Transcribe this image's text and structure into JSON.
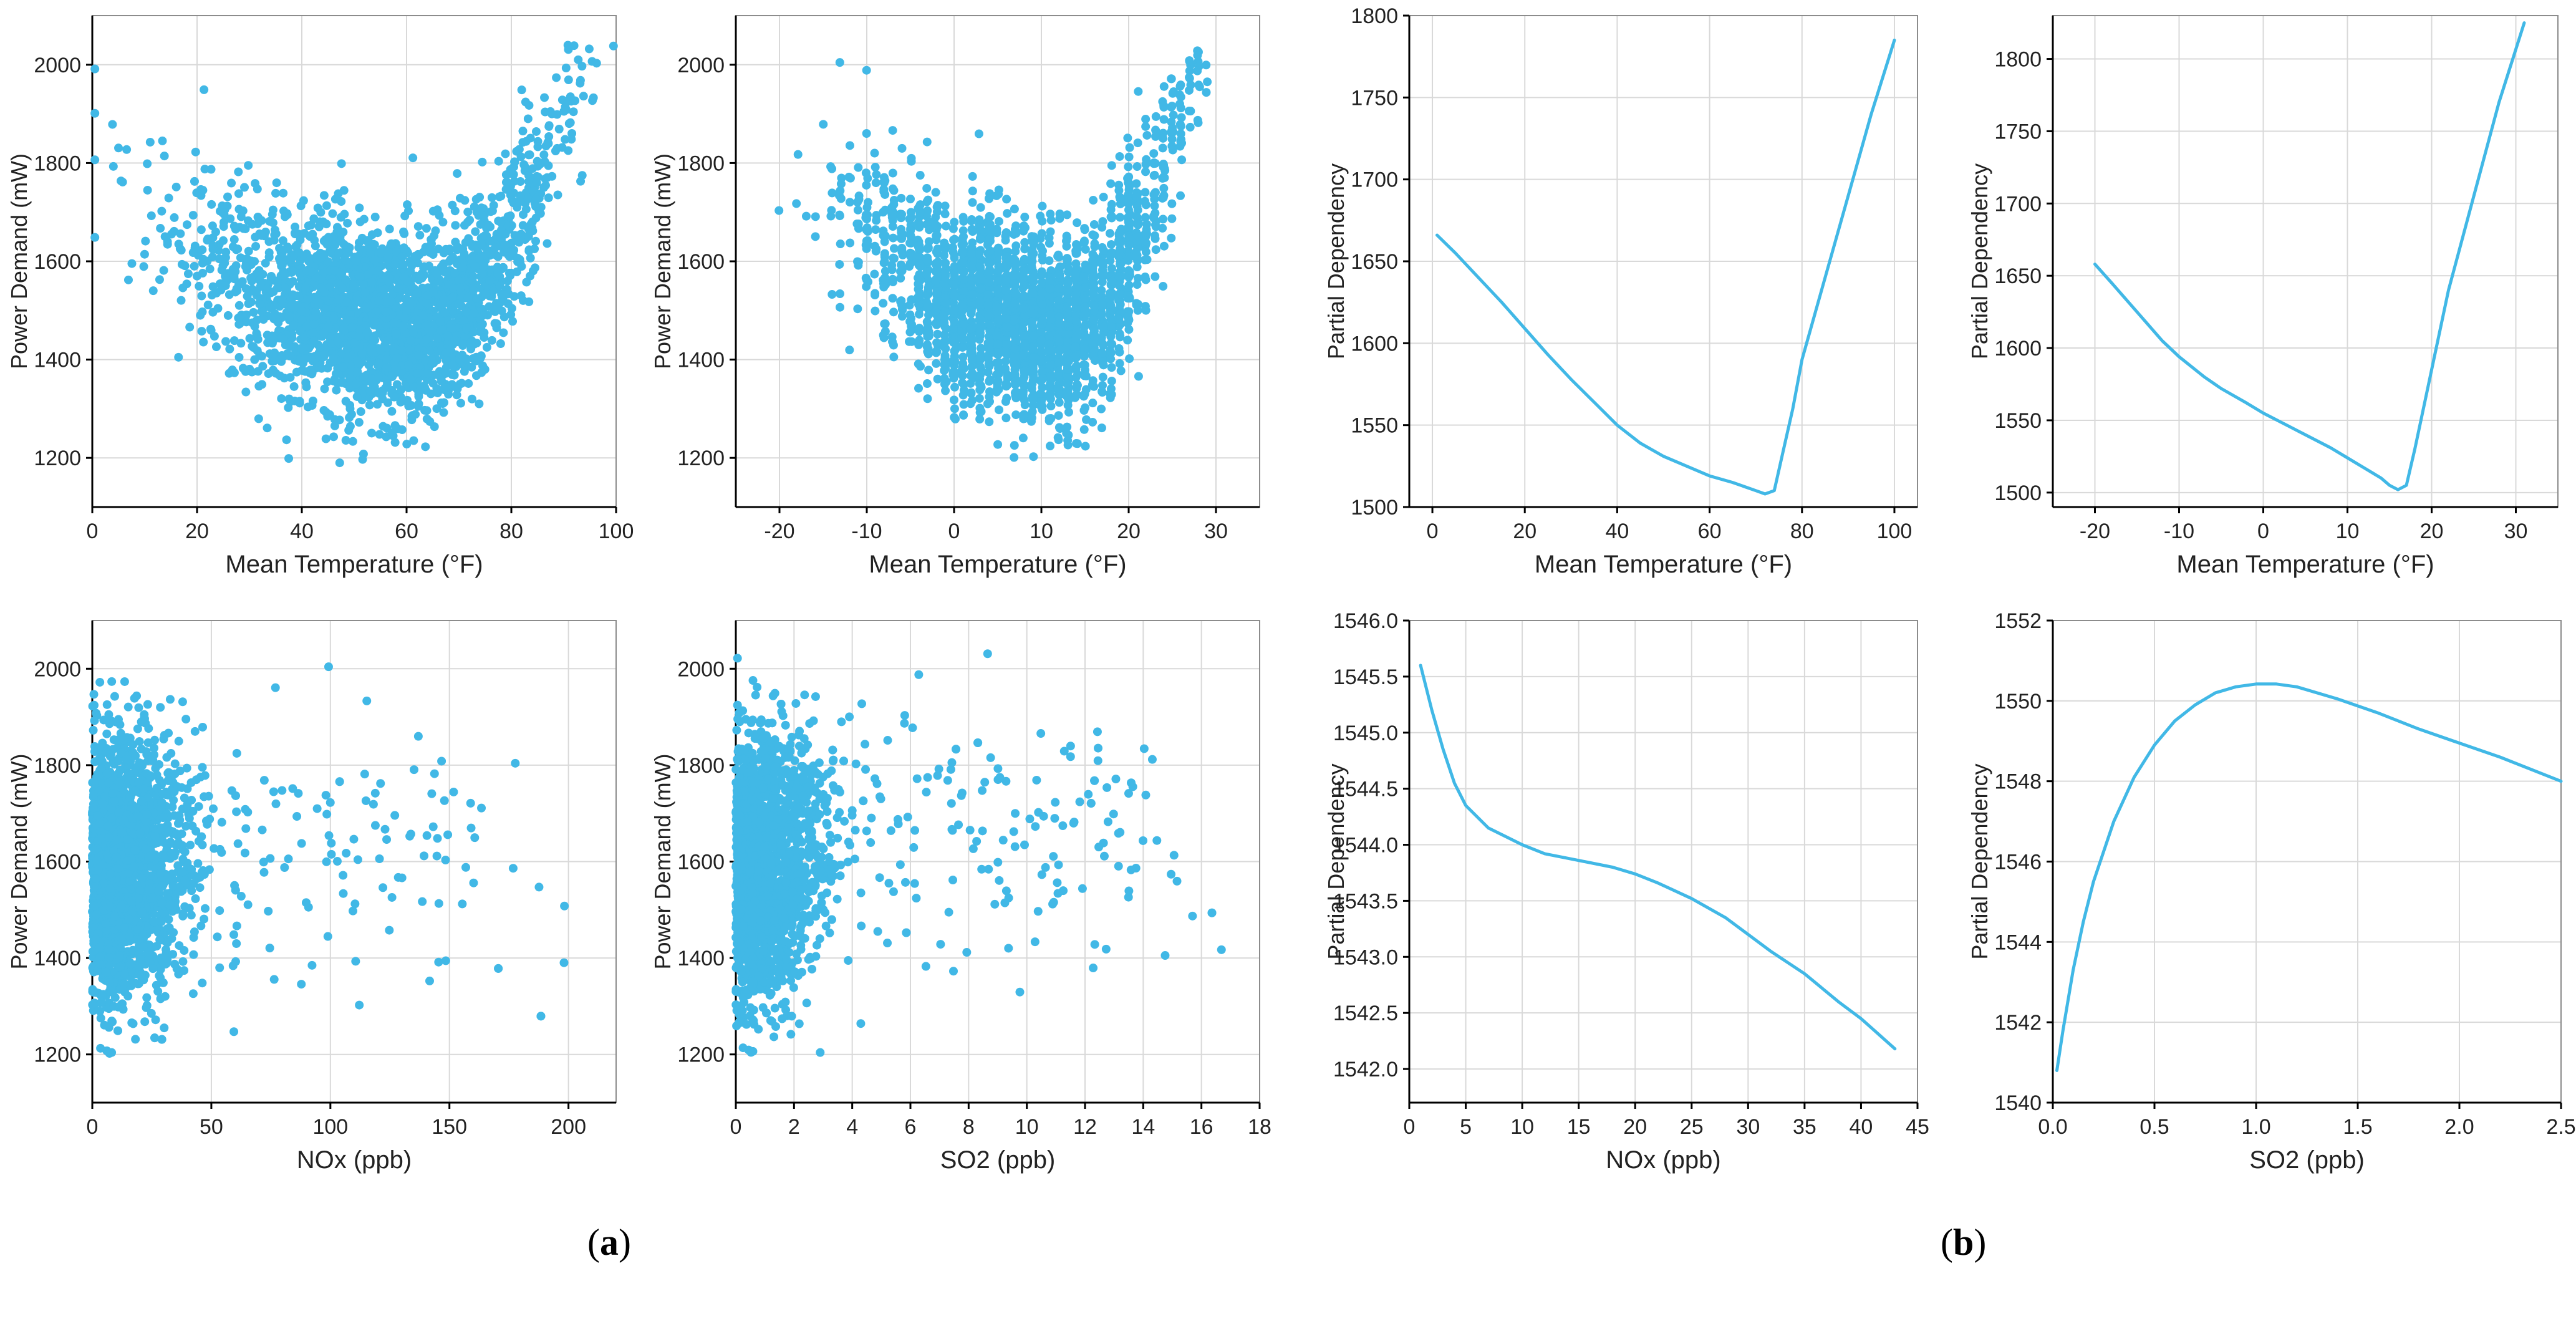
{
  "figure": {
    "panel_a_label": "a",
    "panel_b_label": "b",
    "colors": {
      "series": "#41b8e6",
      "grid": "#d9d9d9",
      "axis": "#000000",
      "text": "#222222"
    }
  },
  "chart_data": [
    {
      "id": "a1",
      "type": "scatter",
      "xlabel": "Mean Temperature (°F)",
      "ylabel": "Power Demand (mW)",
      "xlim": [
        0,
        100
      ],
      "ylim": [
        1100,
        2100
      ],
      "xticks": [
        0,
        20,
        40,
        60,
        80,
        100
      ],
      "yticks": [
        1200,
        1400,
        1600,
        1800,
        2000
      ],
      "grid": true,
      "point_model": {
        "count": 2600,
        "x_range": [
          0,
          100
        ],
        "relationship": "U-shaped, minimum near 62 °F at about 1460 mW, rising to about 1800 mW at 90 °F",
        "y_spread_sd": 90
      }
    },
    {
      "id": "a2",
      "type": "scatter",
      "xlabel": "Mean Temperature (°F)",
      "ylabel": "Power Demand (mW)",
      "xlim": [
        -25,
        35
      ],
      "ylim": [
        1100,
        2100
      ],
      "xticks": [
        -20,
        -10,
        0,
        10,
        20,
        30
      ],
      "yticks": [
        1200,
        1400,
        1600,
        1800,
        2000
      ],
      "grid": true,
      "point_model": {
        "count": 2600,
        "x_range": [
          -20,
          31
        ],
        "relationship": "U-shaped, minimum near 14 at about 1450 mW, rising to about 1800 mW at 28",
        "y_spread_sd": 90
      }
    },
    {
      "id": "b1",
      "type": "line",
      "xlabel": "Mean Temperature (°F)",
      "ylabel": "Partial Dependency",
      "xlim": [
        -5,
        105
      ],
      "ylim": [
        1500,
        1800
      ],
      "xticks": [
        0,
        20,
        40,
        60,
        80,
        100
      ],
      "yticks": [
        1500,
        1550,
        1600,
        1650,
        1700,
        1750,
        1800
      ],
      "grid": true,
      "x": [
        1,
        5,
        10,
        15,
        20,
        25,
        30,
        35,
        40,
        45,
        50,
        55,
        60,
        65,
        70,
        72,
        74,
        76,
        78,
        80,
        85,
        90,
        95,
        100
      ],
      "y": [
        1666,
        1655,
        1640,
        1625,
        1609,
        1593,
        1578,
        1564,
        1550,
        1539,
        1531,
        1525,
        1519,
        1515,
        1510,
        1508,
        1510,
        1535,
        1560,
        1590,
        1640,
        1690,
        1740,
        1785
      ]
    },
    {
      "id": "b2",
      "type": "line",
      "xlabel": "Mean Temperature (°F)",
      "ylabel": "Partial Dependency",
      "xlim": [
        -25,
        35
      ],
      "ylim": [
        1490,
        1830
      ],
      "xticks": [
        -20,
        -10,
        0,
        10,
        20,
        30
      ],
      "yticks": [
        1500,
        1550,
        1600,
        1650,
        1700,
        1750,
        1800
      ],
      "grid": true,
      "x": [
        -20,
        -18,
        -15,
        -12,
        -10,
        -7,
        -5,
        -2,
        0,
        3,
        5,
        8,
        10,
        12,
        14,
        15,
        16,
        17,
        18,
        20,
        22,
        25,
        28,
        31
      ],
      "y": [
        1658,
        1645,
        1625,
        1605,
        1594,
        1580,
        1572,
        1562,
        1555,
        1546,
        1540,
        1531,
        1524,
        1517,
        1510,
        1505,
        1502,
        1505,
        1530,
        1585,
        1640,
        1705,
        1770,
        1825
      ]
    },
    {
      "id": "a3",
      "type": "scatter",
      "xlabel": "NOx (ppb)",
      "ylabel": "Power Demand (mW)",
      "xlim": [
        0,
        220
      ],
      "ylim": [
        1100,
        2100
      ],
      "xticks": [
        0,
        50,
        100,
        150,
        200
      ],
      "yticks": [
        1200,
        1400,
        1600,
        1800,
        2000
      ],
      "grid": true,
      "point_model": {
        "count": 2200,
        "x_range": [
          0,
          212
        ],
        "relationship": "dense near 0–40 ppb, sparse tail to 212 ppb, centered near 1580 mW",
        "y_spread_sd": 140
      }
    },
    {
      "id": "a4",
      "type": "scatter",
      "xlabel": "SO2 (ppb)",
      "ylabel": "Power Demand (mW)",
      "xlim": [
        0,
        18
      ],
      "ylim": [
        1100,
        2100
      ],
      "xticks": [
        0,
        2,
        4,
        6,
        8,
        10,
        12,
        14,
        16,
        18
      ],
      "yticks": [
        1200,
        1400,
        1600,
        1800,
        2000
      ],
      "grid": true,
      "point_model": {
        "count": 2200,
        "x_range": [
          0,
          17.2
        ],
        "relationship": "dense near 0–2 ppb, sparse tail to 17 ppb, centered near 1580 mW",
        "y_spread_sd": 140
      }
    },
    {
      "id": "b3",
      "type": "line",
      "xlabel": "NOx (ppb)",
      "ylabel": "Partial Dependency",
      "xlim": [
        0,
        45
      ],
      "ylim": [
        1541.7,
        1546
      ],
      "xticks": [
        0,
        5,
        10,
        15,
        20,
        25,
        30,
        35,
        40,
        45
      ],
      "yticks": [
        1542.0,
        1542.5,
        1543.0,
        1543.5,
        1544.0,
        1544.5,
        1545.0,
        1545.5,
        1546.0
      ],
      "grid": true,
      "x": [
        1,
        2,
        3,
        4,
        5,
        7,
        10,
        12,
        15,
        18,
        20,
        22,
        25,
        28,
        30,
        32,
        35,
        38,
        40,
        43
      ],
      "y": [
        1545.6,
        1545.2,
        1544.85,
        1544.55,
        1544.35,
        1544.15,
        1544.0,
        1543.92,
        1543.86,
        1543.8,
        1543.74,
        1543.66,
        1543.52,
        1543.35,
        1543.2,
        1543.05,
        1542.85,
        1542.6,
        1542.45,
        1542.18
      ]
    },
    {
      "id": "b4",
      "type": "line",
      "xlabel": "SO2 (ppb)",
      "ylabel": "Partial Dependency",
      "xlim": [
        0,
        2.5
      ],
      "ylim": [
        1540,
        1552
      ],
      "xticks": [
        0.0,
        0.5,
        1.0,
        1.5,
        2.0,
        2.5
      ],
      "yticks": [
        1540,
        1542,
        1544,
        1546,
        1548,
        1550,
        1552
      ],
      "grid": true,
      "x": [
        0.02,
        0.05,
        0.1,
        0.15,
        0.2,
        0.3,
        0.4,
        0.5,
        0.6,
        0.7,
        0.8,
        0.9,
        1.0,
        1.1,
        1.2,
        1.4,
        1.6,
        1.8,
        2.0,
        2.2,
        2.5
      ],
      "y": [
        1540.8,
        1541.8,
        1543.3,
        1544.5,
        1545.5,
        1547.0,
        1548.1,
        1548.9,
        1549.5,
        1549.9,
        1550.2,
        1550.35,
        1550.42,
        1550.42,
        1550.35,
        1550.05,
        1549.7,
        1549.3,
        1548.95,
        1548.6,
        1548.0
      ]
    }
  ]
}
